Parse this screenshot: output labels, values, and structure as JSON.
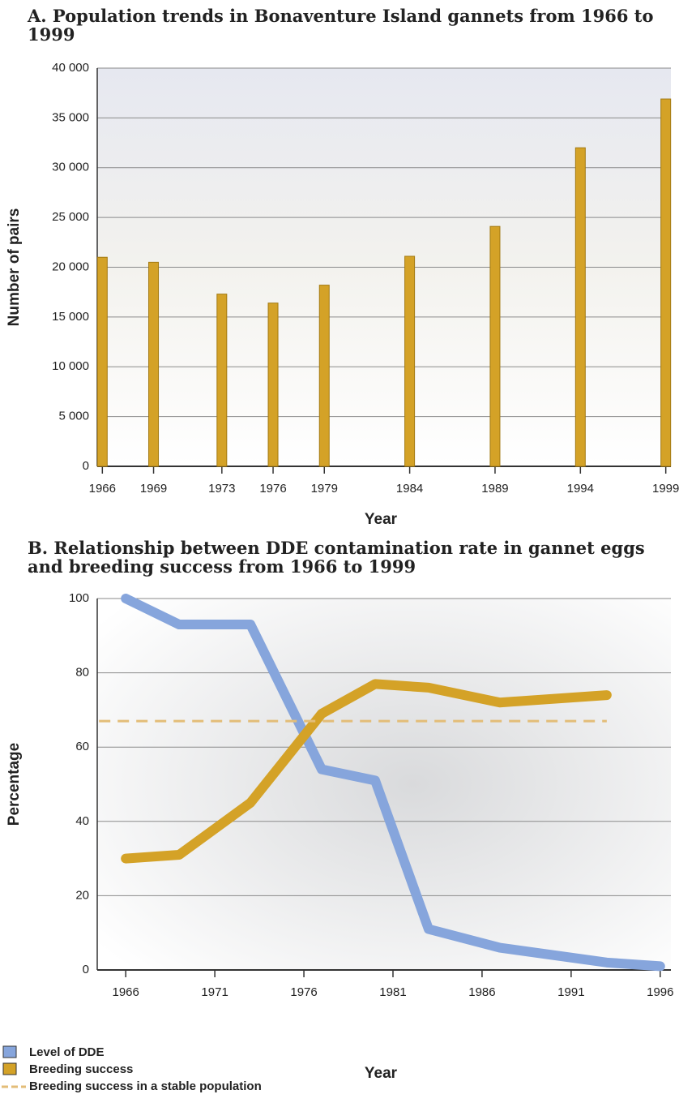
{
  "chart_data": [
    {
      "type": "bar",
      "title": "A. Population trends in Bonaventure Island gannets from 1966 to 1999",
      "x_label": "Year",
      "y_label": "Number of pairs",
      "x": [
        1966,
        1969,
        1973,
        1976,
        1979,
        1984,
        1989,
        1994,
        1999
      ],
      "values": [
        21000,
        20500,
        17300,
        16400,
        18200,
        21100,
        24100,
        32000,
        36900
      ],
      "color": "#d4a227",
      "xlim": [
        1965.7,
        1999.3
      ],
      "xticks": [
        1966,
        1969,
        1973,
        1976,
        1979,
        1984,
        1989,
        1994,
        1999
      ],
      "ylim": [
        0,
        40000
      ],
      "yticks": [
        0,
        {
          "value": 5000,
          "label": "5 000"
        },
        {
          "value": 10000,
          "label": "10 000"
        },
        {
          "value": 15000,
          "label": "15 000"
        },
        {
          "value": 20000,
          "label": "20 000"
        },
        {
          "value": 25000,
          "label": "25 000"
        },
        {
          "value": 30000,
          "label": "30 000"
        },
        {
          "value": 35000,
          "label": "35 000"
        },
        {
          "value": 40000,
          "label": "40 000"
        }
      ],
      "grid": true
    },
    {
      "type": "line",
      "title": "B. Relationship between DDE contamination rate in gannet eggs and breeding success from 1966 to 1999",
      "x_label": "Year",
      "y_label": "Percentage",
      "series": [
        {
          "name": "Level of DDE",
          "color": "#86a5dc",
          "x": [
            1966,
            1969,
            1973,
            1977,
            1980,
            1983,
            1987,
            1993,
            1996
          ],
          "values": [
            100,
            93,
            93,
            54,
            51,
            11,
            6,
            2,
            1
          ]
        },
        {
          "name": "Breeding success",
          "color": "#d4a227",
          "x": [
            1966,
            1969,
            1973,
            1977,
            1980,
            1983,
            1987,
            1993
          ],
          "values": [
            30,
            31,
            45,
            69,
            77,
            76,
            72,
            74
          ]
        },
        {
          "name": "Breeding success in a stable population",
          "color": "#e3bd78",
          "dashed": true,
          "x": [
            1964.5,
            1993
          ],
          "values": [
            67,
            67
          ]
        }
      ],
      "xlim": [
        1964.4,
        1996.6
      ],
      "xticks": [
        1966,
        1971,
        1976,
        1981,
        1986,
        1991,
        1996
      ],
      "ylim": [
        0,
        100
      ],
      "yticks": [
        0,
        20,
        40,
        60,
        80,
        100
      ],
      "grid": true,
      "legend": "bottom-left"
    }
  ]
}
